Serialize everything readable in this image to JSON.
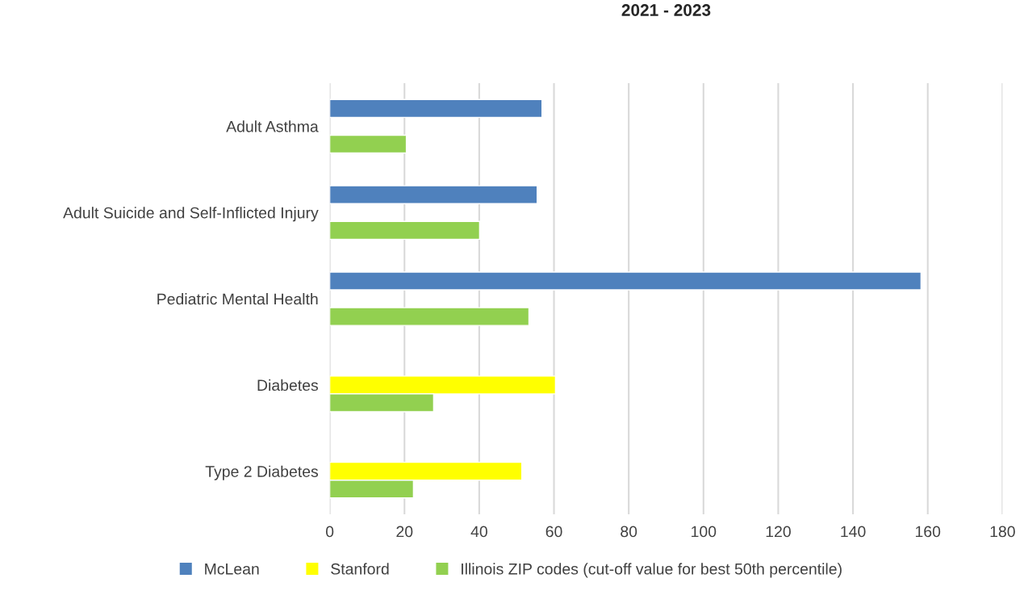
{
  "chart_data": {
    "type": "bar",
    "orientation": "horizontal",
    "title": "2021 - 2023",
    "categories": [
      "Adult Asthma",
      "Adult Suicide and Self-Inflicted Injury",
      "Pediatric Mental Health",
      "Diabetes",
      "Type 2 Diabetes"
    ],
    "series": [
      {
        "name": "McLean",
        "color": "#4f81bd",
        "values": [
          56.8,
          55.5,
          158.2,
          null,
          null
        ]
      },
      {
        "name": "Stanford",
        "color": "#ffff00",
        "values": [
          null,
          null,
          null,
          60.4,
          51.4
        ]
      },
      {
        "name": "Illinois ZIP codes (cut-off value for best 50th percentile)",
        "color": "#92d050",
        "values": [
          20.5,
          40.1,
          53.3,
          27.8,
          22.4
        ]
      }
    ],
    "xlim": [
      0,
      180
    ],
    "xticks": [
      0,
      20,
      40,
      60,
      80,
      100,
      120,
      140,
      160,
      180
    ],
    "grid": "x",
    "legend": "bottom"
  }
}
